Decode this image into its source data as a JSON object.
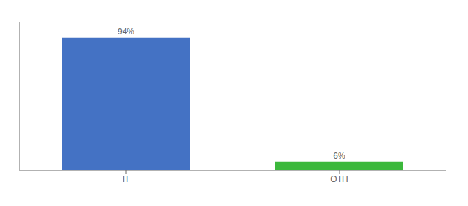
{
  "chart_data": {
    "type": "bar",
    "categories": [
      "IT",
      "OTH"
    ],
    "values": [
      94,
      6
    ],
    "value_labels": [
      "94%",
      "6%"
    ],
    "colors": [
      "#4472c4",
      "#3cb83c"
    ],
    "ylim": [
      0,
      105
    ],
    "data_labels": true,
    "tick_labels": "x"
  }
}
